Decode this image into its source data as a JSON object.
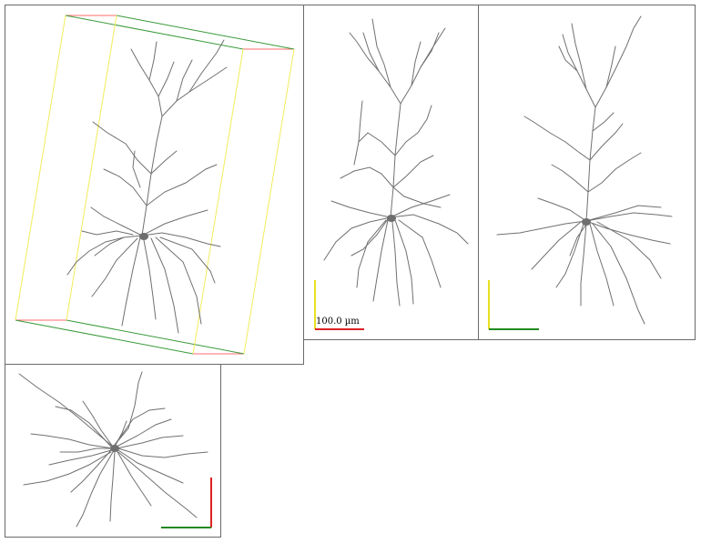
{
  "scale_bar": {
    "label": "100.0 µm"
  },
  "colors": {
    "neuron": "#707070",
    "soma": "#6e6e6e",
    "axis_x": "#dd2222",
    "axis_y": "#e8e020",
    "axis_z": "#218a21",
    "frame": "#6a6a6a",
    "background": "#ffffff"
  },
  "views": [
    "3d-perspective",
    "xy",
    "zy",
    "xz"
  ]
}
